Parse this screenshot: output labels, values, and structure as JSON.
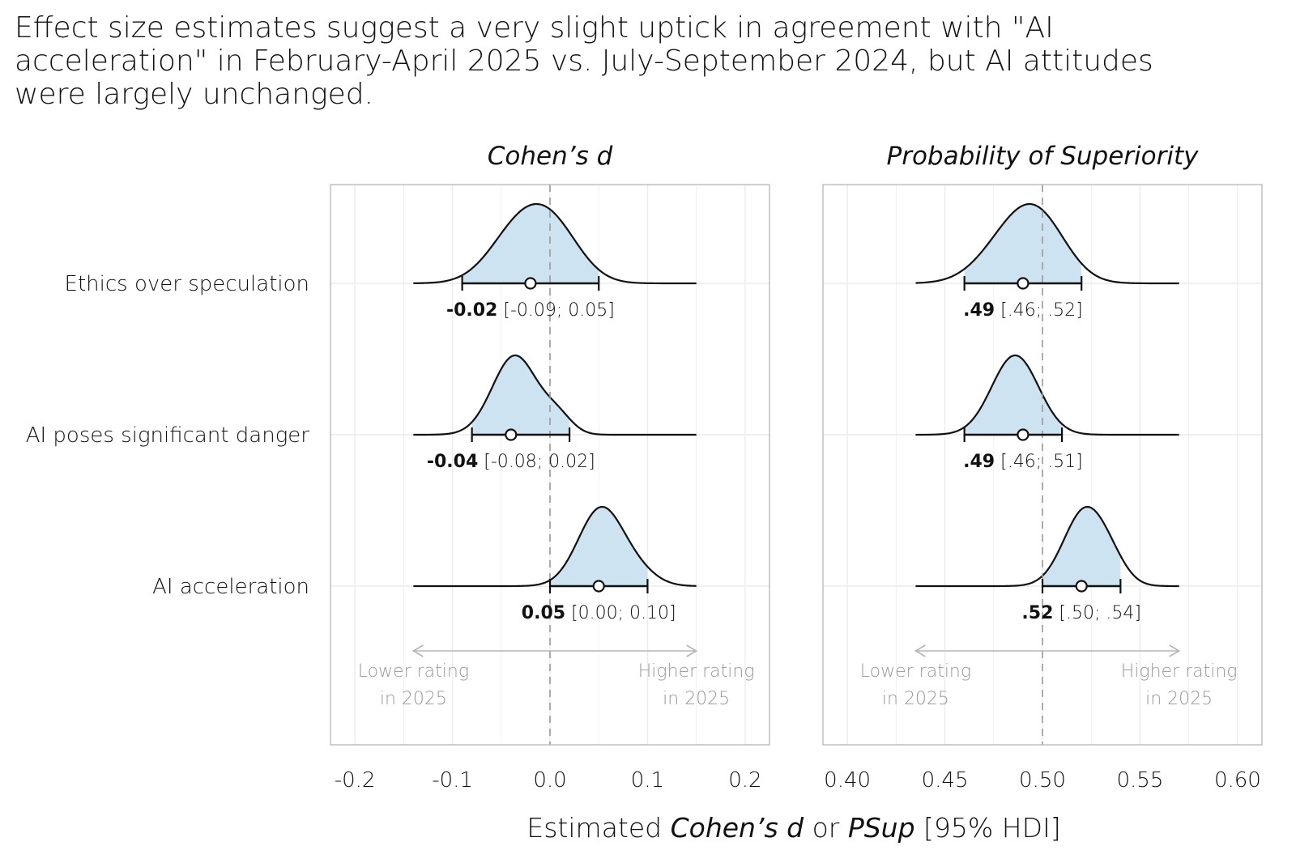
{
  "title_lines": [
    "Effect size estimates suggest a very slight uptick in agreement with \"AI",
    "acceleration\" in February-April 2025 vs. July-September 2024, but AI attitudes",
    "were largely unchanged."
  ],
  "x_axis_title": {
    "part1": "Estimated ",
    "part2": "Cohen’s d",
    "part3": " or ",
    "part4": "PSup",
    "part5": " [95% HDI]"
  },
  "direction_labels": {
    "lower": [
      "Lower rating",
      "in 2025"
    ],
    "higher": [
      "Higher rating",
      "in 2025"
    ]
  },
  "chart_data": [
    {
      "type": "density-interval",
      "title": "Cohen’s d",
      "xlabel": "Estimated Cohen’s d or PSup [95% HDI]",
      "xlim": [
        -0.225,
        0.225
      ],
      "xticks": [
        -0.2,
        -0.1,
        0.0,
        0.1,
        0.2
      ],
      "xtick_labels": [
        "-0.2",
        "-0.1",
        "0.0",
        "0.1",
        "0.2"
      ],
      "reference_line": 0.0,
      "grid": true,
      "categories": [
        "Ethics over speculation",
        "AI poses significant danger",
        "AI acceleration"
      ],
      "rows": [
        {
          "category": "Ethics over speculation",
          "estimate": -0.02,
          "hdi": [
            -0.09,
            0.05
          ],
          "estimate_label": "-0.02",
          "interval_label": "[-0.09; 0.05]",
          "density_range": [
            -0.14,
            0.15
          ],
          "density_components": [
            [
              -0.032,
              0.03,
              0.55
            ],
            [
              0.005,
              0.028,
              0.45
            ]
          ]
        },
        {
          "category": "AI poses significant danger",
          "estimate": -0.04,
          "hdi": [
            -0.08,
            0.02
          ],
          "estimate_label": "-0.04",
          "interval_label": "[-0.08; 0.02]",
          "density_range": [
            -0.14,
            0.15
          ],
          "density_components": [
            [
              -0.036,
              0.023,
              0.88
            ],
            [
              0.008,
              0.015,
              0.12
            ]
          ]
        },
        {
          "category": "AI acceleration",
          "estimate": 0.05,
          "hdi": [
            0.0,
            0.1
          ],
          "estimate_label": "0.05",
          "interval_label": "[0.00; 0.10]",
          "density_range": [
            -0.14,
            0.15
          ],
          "density_components": [
            [
              0.052,
              0.023,
              0.88
            ],
            [
              0.09,
              0.02,
              0.12
            ]
          ]
        }
      ]
    },
    {
      "type": "density-interval",
      "title": "Probability of Superiority",
      "xlabel": "Estimated Cohen’s d or PSup [95% HDI]",
      "xlim": [
        0.3875,
        0.6125
      ],
      "xticks": [
        0.4,
        0.45,
        0.5,
        0.55,
        0.6
      ],
      "xtick_labels": [
        "0.40",
        "0.45",
        "0.50",
        "0.55",
        "0.60"
      ],
      "reference_line": 0.5,
      "grid": true,
      "categories": [
        "Ethics over speculation",
        "AI poses significant danger",
        "AI acceleration"
      ],
      "rows": [
        {
          "category": "Ethics over speculation",
          "estimate": 0.49,
          "hdi": [
            0.46,
            0.52
          ],
          "estimate_label": ".49",
          "interval_label": "[.46; .52]",
          "density_range": [
            0.435,
            0.57
          ],
          "density_components": [
            [
              0.485,
              0.016,
              0.55
            ],
            [
              0.5,
              0.014,
              0.45
            ]
          ]
        },
        {
          "category": "AI poses significant danger",
          "estimate": 0.49,
          "hdi": [
            0.46,
            0.51
          ],
          "estimate_label": ".49",
          "interval_label": "[.46; .51]",
          "density_range": [
            0.435,
            0.57
          ],
          "density_components": [
            [
              0.486,
              0.012,
              1.0
            ]
          ]
        },
        {
          "category": "AI acceleration",
          "estimate": 0.52,
          "hdi": [
            0.5,
            0.54
          ],
          "estimate_label": ".52",
          "interval_label": "[.50; .54]",
          "density_range": [
            0.435,
            0.57
          ],
          "density_components": [
            [
              0.522,
              0.011,
              0.9
            ],
            [
              0.536,
              0.008,
              0.1
            ]
          ]
        }
      ]
    }
  ],
  "colors": {
    "density_fill": "#cde3f1",
    "line": "#111111",
    "grid": "#ececec",
    "panel_border": "#bbbbbb",
    "reference_line": "#999999",
    "direction_text": "#999999"
  }
}
